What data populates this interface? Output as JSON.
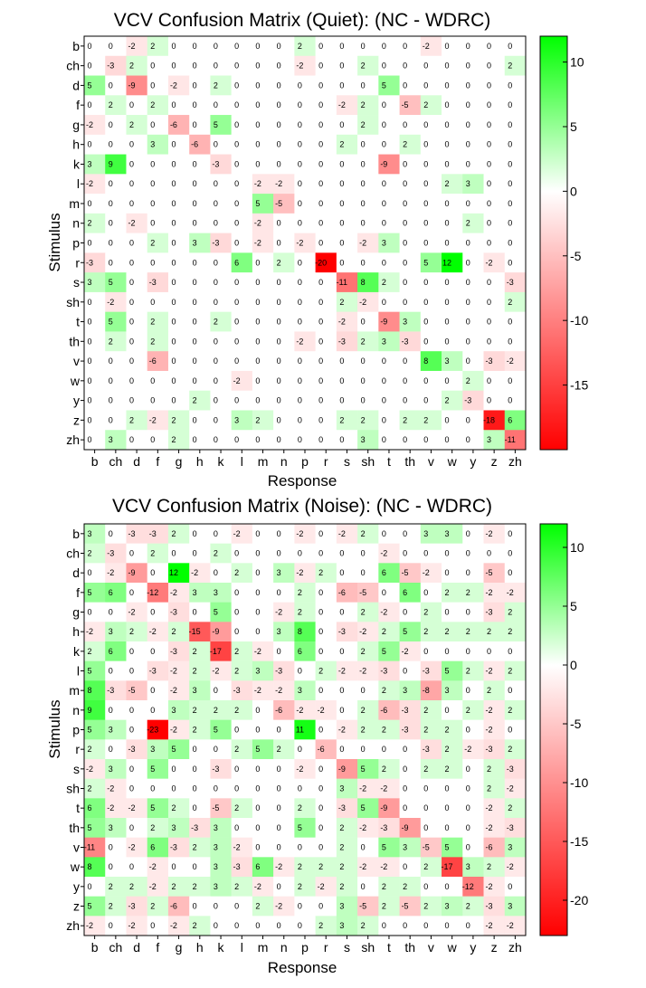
{
  "chart_data": [
    {
      "type": "heatmap",
      "title": "VCV Confusion Matrix (Quiet): (NC - WDRC)",
      "xlabel": "Response",
      "ylabel": "Stimulus",
      "x_categories": [
        "b",
        "ch",
        "d",
        "f",
        "g",
        "h",
        "k",
        "l",
        "m",
        "n",
        "p",
        "r",
        "s",
        "sh",
        "t",
        "th",
        "v",
        "w",
        "y",
        "z",
        "zh"
      ],
      "y_categories": [
        "b",
        "ch",
        "d",
        "f",
        "g",
        "h",
        "k",
        "l",
        "m",
        "n",
        "p",
        "r",
        "s",
        "sh",
        "t",
        "th",
        "v",
        "w",
        "y",
        "z",
        "zh"
      ],
      "colorbar": {
        "min": -20,
        "max": 12,
        "ticks": [
          10,
          5,
          0,
          -5,
          -10,
          -15
        ],
        "colors": {
          "negative": "#ff0000",
          "zero": "#ffffff",
          "positive": "#00ff00"
        }
      },
      "values": [
        [
          0,
          0,
          -2,
          2,
          0,
          0,
          0,
          0,
          0,
          0,
          2,
          0,
          0,
          0,
          0,
          0,
          -2,
          0,
          0,
          0,
          0
        ],
        [
          0,
          -3,
          2,
          0,
          0,
          0,
          0,
          0,
          0,
          0,
          -2,
          0,
          0,
          2,
          0,
          0,
          0,
          0,
          0,
          0,
          2
        ],
        [
          5,
          0,
          -9,
          0,
          -2,
          0,
          2,
          0,
          0,
          0,
          0,
          0,
          0,
          0,
          5,
          0,
          0,
          0,
          0,
          0,
          0
        ],
        [
          0,
          2,
          0,
          2,
          0,
          0,
          0,
          0,
          0,
          0,
          0,
          0,
          -2,
          2,
          0,
          -5,
          2,
          0,
          0,
          0,
          0
        ],
        [
          -2,
          0,
          2,
          0,
          -6,
          0,
          5,
          0,
          0,
          0,
          0,
          0,
          0,
          2,
          0,
          0,
          0,
          0,
          0,
          0,
          0
        ],
        [
          0,
          0,
          0,
          3,
          0,
          -6,
          0,
          0,
          0,
          0,
          0,
          0,
          2,
          0,
          0,
          2,
          0,
          0,
          0,
          0,
          0
        ],
        [
          3,
          9,
          0,
          0,
          0,
          0,
          -3,
          0,
          0,
          0,
          0,
          0,
          0,
          0,
          -9,
          0,
          0,
          0,
          0,
          0,
          0
        ],
        [
          -2,
          0,
          0,
          0,
          0,
          0,
          0,
          0,
          -2,
          -2,
          0,
          0,
          0,
          0,
          0,
          0,
          0,
          2,
          3,
          0,
          0
        ],
        [
          0,
          0,
          0,
          0,
          0,
          0,
          0,
          0,
          5,
          -5,
          0,
          0,
          0,
          0,
          0,
          0,
          0,
          0,
          0,
          0,
          0
        ],
        [
          2,
          0,
          -2,
          0,
          0,
          0,
          0,
          0,
          -2,
          0,
          0,
          0,
          0,
          0,
          0,
          0,
          0,
          0,
          2,
          0,
          0
        ],
        [
          0,
          0,
          0,
          2,
          0,
          3,
          -3,
          0,
          -2,
          0,
          -2,
          0,
          0,
          -2,
          3,
          0,
          0,
          0,
          0,
          0,
          0
        ],
        [
          -3,
          0,
          0,
          0,
          0,
          0,
          0,
          6,
          0,
          2,
          0,
          -20,
          0,
          0,
          0,
          0,
          5,
          12,
          0,
          -2,
          0
        ],
        [
          3,
          5,
          0,
          -3,
          0,
          0,
          0,
          0,
          0,
          0,
          0,
          0,
          -11,
          8,
          2,
          0,
          0,
          0,
          0,
          0,
          -3
        ],
        [
          0,
          -2,
          0,
          0,
          0,
          0,
          0,
          0,
          0,
          0,
          0,
          0,
          2,
          -2,
          0,
          0,
          0,
          0,
          0,
          0,
          2
        ],
        [
          0,
          5,
          0,
          2,
          0,
          0,
          2,
          0,
          0,
          0,
          0,
          0,
          -2,
          0,
          -9,
          3,
          0,
          0,
          0,
          0,
          0
        ],
        [
          0,
          2,
          0,
          2,
          0,
          0,
          0,
          0,
          0,
          0,
          -2,
          0,
          -3,
          2,
          3,
          -3,
          0,
          0,
          0,
          0,
          0
        ],
        [
          0,
          0,
          0,
          -6,
          0,
          0,
          0,
          0,
          0,
          0,
          0,
          0,
          0,
          0,
          0,
          0,
          8,
          3,
          0,
          -3,
          -2
        ],
        [
          0,
          0,
          0,
          0,
          0,
          0,
          0,
          -2,
          0,
          0,
          0,
          0,
          0,
          0,
          0,
          0,
          0,
          0,
          2,
          0,
          0
        ],
        [
          0,
          0,
          0,
          0,
          0,
          2,
          0,
          0,
          0,
          0,
          0,
          0,
          0,
          0,
          0,
          0,
          0,
          2,
          -3,
          0,
          0
        ],
        [
          0,
          0,
          2,
          -2,
          2,
          0,
          0,
          3,
          2,
          0,
          0,
          0,
          2,
          2,
          0,
          2,
          2,
          0,
          0,
          -18,
          6
        ],
        [
          0,
          3,
          0,
          0,
          2,
          0,
          0,
          0,
          0,
          0,
          0,
          0,
          0,
          3,
          0,
          0,
          0,
          0,
          0,
          3,
          -11
        ]
      ]
    },
    {
      "type": "heatmap",
      "title": "VCV Confusion Matrix (Noise): (NC - WDRC)",
      "xlabel": "Response",
      "ylabel": "Stimulus",
      "x_categories": [
        "b",
        "ch",
        "d",
        "f",
        "g",
        "h",
        "k",
        "l",
        "m",
        "n",
        "p",
        "r",
        "s",
        "sh",
        "t",
        "th",
        "v",
        "w",
        "y",
        "z",
        "zh"
      ],
      "y_categories": [
        "b",
        "ch",
        "d",
        "f",
        "g",
        "h",
        "k",
        "l",
        "m",
        "n",
        "p",
        "r",
        "s",
        "sh",
        "t",
        "th",
        "v",
        "w",
        "y",
        "z",
        "zh"
      ],
      "colorbar": {
        "min": -23,
        "max": 12,
        "ticks": [
          10,
          5,
          0,
          -5,
          -10,
          -15,
          -20
        ],
        "colors": {
          "negative": "#ff0000",
          "zero": "#ffffff",
          "positive": "#00ff00"
        }
      },
      "values": [
        [
          3,
          0,
          -3,
          -3,
          2,
          0,
          0,
          -2,
          0,
          0,
          -2,
          0,
          -2,
          2,
          0,
          0,
          3,
          3,
          0,
          -2,
          0
        ],
        [
          2,
          -3,
          0,
          2,
          0,
          0,
          2,
          0,
          0,
          0,
          0,
          0,
          0,
          0,
          -2,
          0,
          0,
          0,
          0,
          0,
          0
        ],
        [
          0,
          -2,
          -9,
          0,
          12,
          -2,
          0,
          2,
          0,
          3,
          -2,
          2,
          0,
          0,
          6,
          -5,
          -2,
          0,
          0,
          -5,
          0
        ],
        [
          5,
          6,
          0,
          -12,
          -2,
          3,
          3,
          0,
          0,
          0,
          2,
          0,
          -6,
          -5,
          0,
          6,
          0,
          2,
          2,
          -2,
          -2
        ],
        [
          0,
          0,
          -2,
          0,
          -3,
          0,
          5,
          0,
          0,
          -2,
          2,
          0,
          0,
          2,
          -2,
          0,
          2,
          0,
          0,
          -3,
          2
        ],
        [
          -2,
          3,
          2,
          -2,
          2,
          -15,
          -9,
          0,
          0,
          3,
          8,
          0,
          -3,
          -2,
          2,
          5,
          2,
          2,
          2,
          2,
          2
        ],
        [
          2,
          6,
          0,
          0,
          -3,
          2,
          -17,
          2,
          -2,
          0,
          6,
          0,
          0,
          2,
          5,
          -2,
          0,
          0,
          0,
          0,
          0
        ],
        [
          5,
          0,
          0,
          -3,
          -2,
          2,
          -2,
          2,
          3,
          -3,
          0,
          2,
          -2,
          -2,
          -3,
          0,
          -3,
          5,
          2,
          -2,
          2
        ],
        [
          8,
          -3,
          -5,
          0,
          -2,
          3,
          0,
          -3,
          -2,
          -2,
          3,
          0,
          0,
          0,
          2,
          3,
          -8,
          3,
          0,
          2,
          0
        ],
        [
          9,
          0,
          0,
          0,
          3,
          2,
          2,
          2,
          0,
          -6,
          -2,
          -2,
          0,
          2,
          -6,
          -3,
          2,
          0,
          2,
          -2,
          2
        ],
        [
          5,
          3,
          0,
          -23,
          -2,
          2,
          5,
          0,
          0,
          0,
          11,
          0,
          -2,
          2,
          2,
          -3,
          2,
          2,
          0,
          -2,
          0
        ],
        [
          2,
          0,
          -3,
          3,
          5,
          0,
          0,
          2,
          5,
          2,
          0,
          -6,
          0,
          0,
          0,
          0,
          -3,
          2,
          -2,
          -3,
          2
        ],
        [
          -2,
          3,
          0,
          5,
          0,
          0,
          -3,
          0,
          0,
          0,
          -2,
          0,
          -9,
          5,
          2,
          0,
          2,
          2,
          0,
          2,
          -3
        ],
        [
          2,
          -2,
          0,
          0,
          0,
          0,
          0,
          0,
          0,
          0,
          0,
          0,
          3,
          -2,
          -2,
          0,
          0,
          0,
          0,
          2,
          -2
        ],
        [
          6,
          -2,
          -2,
          5,
          2,
          0,
          -5,
          2,
          0,
          0,
          2,
          0,
          -3,
          5,
          -9,
          0,
          0,
          0,
          0,
          -2,
          2
        ],
        [
          5,
          3,
          0,
          2,
          3,
          -3,
          3,
          0,
          0,
          0,
          5,
          0,
          2,
          -2,
          -3,
          -9,
          0,
          0,
          0,
          -2,
          -3
        ],
        [
          -11,
          0,
          -2,
          6,
          -3,
          2,
          3,
          -2,
          0,
          0,
          0,
          0,
          2,
          0,
          5,
          3,
          -5,
          5,
          0,
          -6,
          3
        ],
        [
          8,
          0,
          0,
          -2,
          0,
          0,
          3,
          -3,
          6,
          -2,
          2,
          2,
          2,
          -2,
          -2,
          0,
          2,
          -17,
          3,
          2,
          -2
        ],
        [
          0,
          2,
          2,
          -2,
          2,
          2,
          3,
          2,
          -2,
          0,
          2,
          -2,
          2,
          0,
          2,
          2,
          0,
          0,
          -12,
          -2,
          0
        ],
        [
          5,
          2,
          -3,
          2,
          -6,
          0,
          0,
          0,
          2,
          -2,
          0,
          0,
          3,
          -5,
          2,
          -5,
          2,
          3,
          2,
          -3,
          3
        ],
        [
          -2,
          0,
          -2,
          0,
          -2,
          2,
          0,
          0,
          0,
          0,
          0,
          2,
          3,
          2,
          0,
          0,
          0,
          0,
          0,
          -2,
          -2
        ]
      ]
    }
  ]
}
